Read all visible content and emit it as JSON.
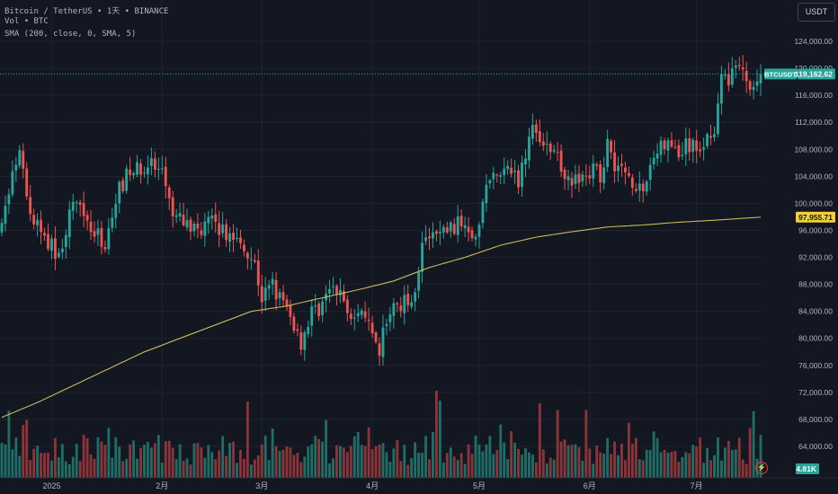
{
  "header": {
    "symbol_line": [
      "Bitcoin / TetherUS",
      "1天",
      "BINANCE"
    ],
    "volume_line": [
      "Vol",
      "BTC"
    ],
    "sma_line": "SMA (200, close, 0, SMA, 5)",
    "currency_button": "USDT"
  },
  "colors": {
    "background": "#131722",
    "up": "#26a69a",
    "down": "#ef5350",
    "vol_up": "#1f6e65",
    "vol_down": "#8c3438",
    "sma": "#c9b85a",
    "price_line": "#26a69a",
    "grid": "#1f2330"
  },
  "price_axis": {
    "ticks": [
      "124,000.00",
      "120,000.00",
      "116,000.00",
      "112,000.00",
      "108,000.00",
      "104,000.00",
      "100,000.00",
      "96,000.00",
      "92,000.00",
      "88,000.00",
      "84,000.00",
      "80,000.00",
      "76,000.00",
      "72,000.00",
      "68,000.00",
      "64,000.00"
    ],
    "tick_values": [
      124000,
      120000,
      116000,
      112000,
      108000,
      104000,
      100000,
      96000,
      92000,
      88000,
      84000,
      80000,
      76000,
      72000,
      68000,
      64000
    ]
  },
  "time_axis": {
    "labels": [
      "2025",
      "2月",
      "3月",
      "4月",
      "5月",
      "6月",
      "7月"
    ],
    "label_days": [
      14,
      45,
      73,
      104,
      134,
      165,
      195
    ]
  },
  "markers": {
    "last_price": {
      "label": "BTCUSDT",
      "value": 119162.62,
      "text": "119,162.62"
    },
    "sma": {
      "value": 97955.71,
      "text": "97,955.71"
    },
    "volume": {
      "text": "4.81K"
    }
  },
  "chart_data": {
    "type": "candlestick",
    "title": "Bitcoin / TetherUS",
    "interval": "1天",
    "exchange": "BINANCE",
    "ylim": [
      63000,
      126500
    ],
    "x_unit": "day",
    "keypoints": [
      [
        0,
        96000
      ],
      [
        2,
        102000
      ],
      [
        5,
        107000
      ],
      [
        8,
        98000
      ],
      [
        12,
        95000
      ],
      [
        16,
        92000
      ],
      [
        19,
        98000
      ],
      [
        22,
        101000
      ],
      [
        25,
        96000
      ],
      [
        29,
        94000
      ],
      [
        32,
        101000
      ],
      [
        35,
        104000
      ],
      [
        38,
        105000
      ],
      [
        41,
        106000
      ],
      [
        45,
        104000
      ],
      [
        48,
        98000
      ],
      [
        52,
        97000
      ],
      [
        55,
        96000
      ],
      [
        58,
        97500
      ],
      [
        63,
        95500
      ],
      [
        68,
        94000
      ],
      [
        71,
        91000
      ],
      [
        73,
        86000
      ],
      [
        76,
        88000
      ],
      [
        79,
        85000
      ],
      [
        82,
        82000
      ],
      [
        84,
        79500
      ],
      [
        87,
        84000
      ],
      [
        89,
        84500
      ],
      [
        92,
        87000
      ],
      [
        95,
        86500
      ],
      [
        98,
        84000
      ],
      [
        100,
        82500
      ],
      [
        102,
        84000
      ],
      [
        104,
        79500
      ],
      [
        106,
        78000
      ],
      [
        108,
        83000
      ],
      [
        111,
        85000
      ],
      [
        114,
        85500
      ],
      [
        116,
        87500
      ],
      [
        118,
        94000
      ],
      [
        121,
        95000
      ],
      [
        124,
        96000
      ],
      [
        127,
        96500
      ],
      [
        130,
        97500
      ],
      [
        132,
        96000
      ],
      [
        134,
        96500
      ],
      [
        136,
        103000
      ],
      [
        139,
        104000
      ],
      [
        142,
        104500
      ],
      [
        145,
        103500
      ],
      [
        148,
        110000
      ],
      [
        150,
        111500
      ],
      [
        153,
        108000
      ],
      [
        156,
        106500
      ],
      [
        159,
        104000
      ],
      [
        162,
        103000
      ],
      [
        165,
        105000
      ],
      [
        168,
        104000
      ],
      [
        170,
        109000
      ],
      [
        172,
        106000
      ],
      [
        175,
        104500
      ],
      [
        178,
        103000
      ],
      [
        180,
        100500
      ],
      [
        182,
        106000
      ],
      [
        185,
        108500
      ],
      [
        188,
        108500
      ],
      [
        190,
        107000
      ],
      [
        192,
        108500
      ],
      [
        195,
        108000
      ],
      [
        197,
        109000
      ],
      [
        200,
        111500
      ],
      [
        202,
        118000
      ],
      [
        204,
        118500
      ],
      [
        206,
        121000
      ],
      [
        208,
        119000
      ],
      [
        210,
        118000
      ],
      [
        212,
        117500
      ],
      [
        213,
        119160
      ]
    ],
    "sma_window": 200,
    "sma_keypoints": [
      [
        0,
        68300
      ],
      [
        10,
        70500
      ],
      [
        20,
        73000
      ],
      [
        30,
        75500
      ],
      [
        40,
        78000
      ],
      [
        50,
        80000
      ],
      [
        60,
        82000
      ],
      [
        70,
        84000
      ],
      [
        80,
        84800
      ],
      [
        90,
        86000
      ],
      [
        100,
        87200
      ],
      [
        110,
        88500
      ],
      [
        120,
        90500
      ],
      [
        130,
        92000
      ],
      [
        140,
        93800
      ],
      [
        150,
        95000
      ],
      [
        160,
        95800
      ],
      [
        170,
        96500
      ],
      [
        180,
        96800
      ],
      [
        190,
        97200
      ],
      [
        200,
        97500
      ],
      [
        213,
        97955.71
      ]
    ],
    "last_price": 119162.62,
    "sma_last": 97955.71,
    "volume_last": "4.81K",
    "series": [
      {
        "name": "BTCUSDT"
      },
      {
        "name": "SMA (200, close, 0, SMA, 5)"
      },
      {
        "name": "Vol"
      }
    ]
  }
}
